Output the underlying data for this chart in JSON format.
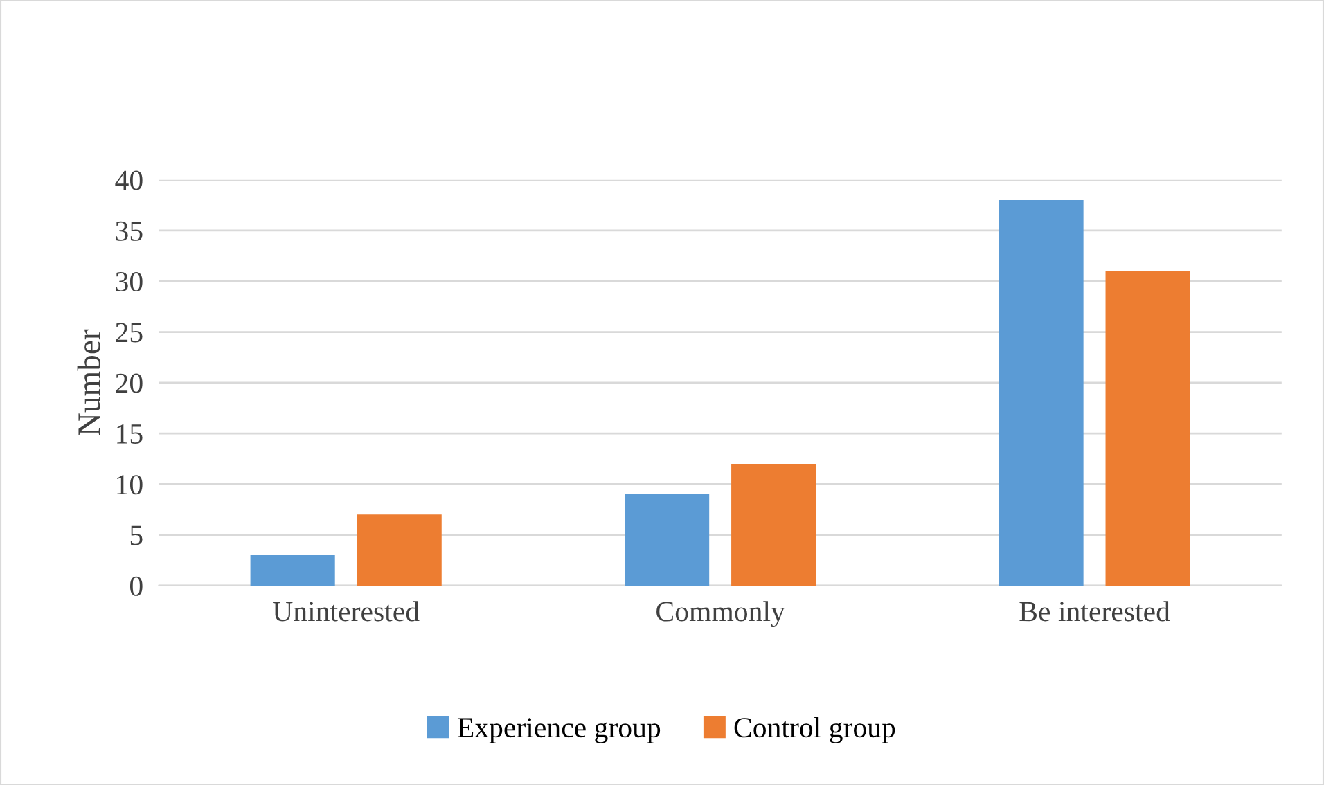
{
  "chart_data": {
    "type": "bar",
    "ylabel": "Number",
    "categories": [
      "Uninterested",
      "Commonly",
      "Be interested"
    ],
    "series": [
      {
        "name": "Experience group",
        "color": "#5b9bd5",
        "values": [
          3,
          9,
          38
        ]
      },
      {
        "name": "Control group",
        "color": "#ed7d31",
        "values": [
          7,
          12,
          31
        ]
      }
    ],
    "ylim": [
      0,
      40
    ],
    "yticks": [
      0,
      5,
      10,
      15,
      20,
      25,
      30,
      35,
      40
    ],
    "grid": "y",
    "legend": "bottom"
  }
}
